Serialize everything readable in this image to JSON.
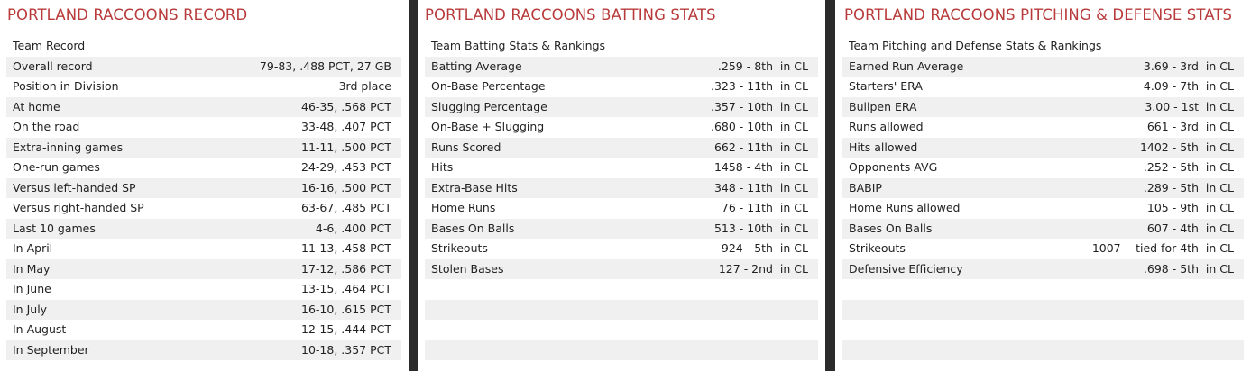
{
  "record": {
    "title": "PORTLAND RACCOONS RECORD",
    "header": "Team Record",
    "rows": [
      {
        "label": "Overall record",
        "value": "79-83, .488 PCT, 27 GB"
      },
      {
        "label": "Position in Division",
        "value": "3rd place"
      },
      {
        "label": "At home",
        "value": "46-35, .568 PCT"
      },
      {
        "label": "On the road",
        "value": "33-48, .407 PCT"
      },
      {
        "label": "Extra-inning games",
        "value": "11-11, .500 PCT"
      },
      {
        "label": "One-run games",
        "value": "24-29, .453 PCT"
      },
      {
        "label": "Versus left-handed SP",
        "value": "16-16, .500 PCT"
      },
      {
        "label": "Versus right-handed SP",
        "value": "63-67, .485 PCT"
      },
      {
        "label": "Last 10 games",
        "value": "4-6, .400 PCT"
      },
      {
        "label": "In April",
        "value": "11-13, .458 PCT"
      },
      {
        "label": "In May",
        "value": "17-12, .586 PCT"
      },
      {
        "label": "In June",
        "value": "13-15, .464 PCT"
      },
      {
        "label": "In July",
        "value": "16-10, .615 PCT"
      },
      {
        "label": "In August",
        "value": "12-15, .444 PCT"
      },
      {
        "label": "In September",
        "value": "10-18, .357 PCT"
      }
    ]
  },
  "batting": {
    "title": "PORTLAND RACCOONS BATTING STATS",
    "header": "Team Batting Stats & Rankings",
    "rows": [
      {
        "label": "Batting Average",
        "value": ".259 - 8th  in CL"
      },
      {
        "label": "On-Base Percentage",
        "value": ".323 - 11th  in CL"
      },
      {
        "label": "Slugging Percentage",
        "value": ".357 - 10th  in CL"
      },
      {
        "label": "On-Base + Slugging",
        "value": ".680 - 10th  in CL"
      },
      {
        "label": "Runs Scored",
        "value": "662 - 11th  in CL"
      },
      {
        "label": "Hits",
        "value": "1458 - 4th  in CL"
      },
      {
        "label": "Extra-Base Hits",
        "value": "348 - 11th  in CL"
      },
      {
        "label": "Home Runs",
        "value": "76 - 11th  in CL"
      },
      {
        "label": "Bases On Balls",
        "value": "513 - 10th  in CL"
      },
      {
        "label": "Strikeouts",
        "value": "924 - 5th  in CL"
      },
      {
        "label": "Stolen Bases",
        "value": "127 - 2nd  in CL"
      },
      {
        "label": "",
        "value": ""
      },
      {
        "label": "",
        "value": ""
      },
      {
        "label": "",
        "value": ""
      },
      {
        "label": "",
        "value": ""
      }
    ]
  },
  "pitching": {
    "title": "PORTLAND RACCOONS PITCHING & DEFENSE STATS",
    "header": "Team Pitching and Defense Stats & Rankings",
    "rows": [
      {
        "label": "Earned Run Average",
        "value": "3.69 - 3rd  in CL"
      },
      {
        "label": "Starters' ERA",
        "value": "4.09 - 7th  in CL"
      },
      {
        "label": "Bullpen ERA",
        "value": "3.00 - 1st  in CL"
      },
      {
        "label": "Runs allowed",
        "value": "661 - 3rd  in CL"
      },
      {
        "label": "Hits allowed",
        "value": "1402 - 5th  in CL"
      },
      {
        "label": "Opponents AVG",
        "value": ".252 - 5th  in CL"
      },
      {
        "label": "BABIP",
        "value": ".289 - 5th  in CL"
      },
      {
        "label": "Home Runs allowed",
        "value": "105 - 9th  in CL"
      },
      {
        "label": "Bases On Balls",
        "value": "607 - 4th  in CL"
      },
      {
        "label": "Strikeouts",
        "value": "1007 -  tied for 4th  in CL"
      },
      {
        "label": "Defensive Efficiency",
        "value": ".698 - 5th  in CL"
      },
      {
        "label": "",
        "value": ""
      },
      {
        "label": "",
        "value": ""
      },
      {
        "label": "",
        "value": ""
      },
      {
        "label": "",
        "value": ""
      }
    ]
  }
}
